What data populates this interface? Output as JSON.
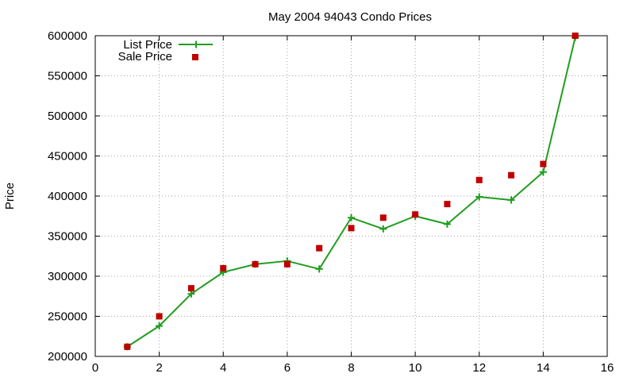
{
  "chart_data": {
    "type": "line",
    "title": "May 2004 94043 Condo Prices",
    "xlabel": "",
    "ylabel": "Price",
    "xlim": [
      0,
      16
    ],
    "ylim": [
      200000,
      600000
    ],
    "xticks": [
      0,
      2,
      4,
      6,
      8,
      10,
      12,
      14,
      16
    ],
    "yticks": [
      200000,
      250000,
      300000,
      350000,
      400000,
      450000,
      500000,
      550000,
      600000
    ],
    "grid": true,
    "legend_position": "top-left",
    "series": [
      {
        "name": "List Price",
        "style": "line-with-plus-markers",
        "color": "#1f9e1f",
        "x": [
          1,
          2,
          3,
          4,
          5,
          6,
          7,
          8,
          9,
          10,
          11,
          12,
          13,
          14,
          15
        ],
        "values": [
          212000,
          238000,
          278000,
          305000,
          315000,
          319000,
          309000,
          373000,
          359000,
          375000,
          365000,
          399000,
          395000,
          430000,
          598000
        ]
      },
      {
        "name": "Sale Price",
        "style": "square-markers",
        "color": "#c00000",
        "x": [
          1,
          2,
          3,
          4,
          5,
          6,
          7,
          8,
          9,
          10,
          11,
          12,
          13,
          14,
          15
        ],
        "values": [
          212000,
          250000,
          285000,
          310000,
          315000,
          315000,
          335000,
          360000,
          373000,
          377000,
          390000,
          420000,
          426000,
          440000,
          600000
        ]
      }
    ]
  }
}
